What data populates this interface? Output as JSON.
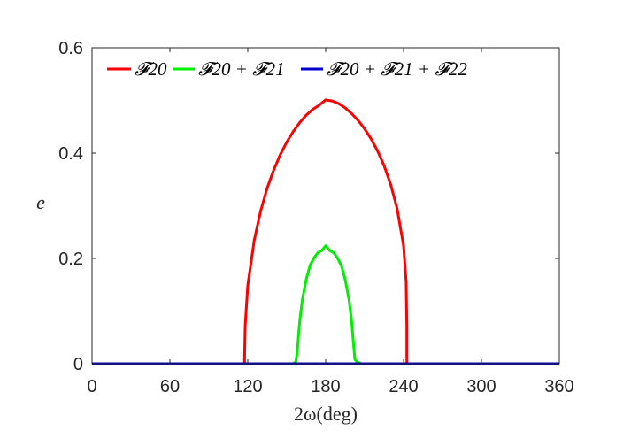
{
  "chart_data": {
    "type": "line",
    "xlabel": "2ω(deg)",
    "ylabel": "e",
    "xlim": [
      0,
      360
    ],
    "ylim": [
      0,
      0.6
    ],
    "xticks": [
      0,
      60,
      120,
      180,
      240,
      300,
      360
    ],
    "yticks": [
      0,
      0.2,
      0.4,
      0.6
    ],
    "ytick_labels": [
      "0",
      "0.2",
      "0.4",
      "0.6"
    ],
    "grid": false,
    "legend_position": "top",
    "series": [
      {
        "name": "𝓕20",
        "color": "#ff0000",
        "x": [
          0,
          117.5,
          117.5,
          118,
          120,
          125,
          130,
          135,
          140,
          145,
          150,
          155,
          160,
          165,
          170,
          175,
          180,
          185,
          190,
          195,
          200,
          205,
          210,
          215,
          220,
          225,
          230,
          235,
          240,
          242,
          242.5,
          242.5,
          360
        ],
        "y": [
          0,
          0,
          0.01,
          0.072,
          0.149,
          0.235,
          0.291,
          0.334,
          0.368,
          0.397,
          0.421,
          0.441,
          0.458,
          0.472,
          0.483,
          0.491,
          0.501,
          0.499,
          0.494,
          0.486,
          0.475,
          0.462,
          0.446,
          0.427,
          0.404,
          0.376,
          0.341,
          0.295,
          0.224,
          0.155,
          0.07,
          0,
          0
        ]
      },
      {
        "name": "𝓕20 + 𝓕21",
        "color": "#00ee00",
        "x": [
          0,
          155,
          157,
          158,
          160,
          162,
          165,
          168,
          171,
          174,
          177,
          180,
          183,
          186,
          189,
          192,
          195,
          198,
          200,
          201,
          202.5,
          204,
          207,
          360
        ],
        "y": [
          0,
          0,
          0.004,
          0.02,
          0.081,
          0.121,
          0.16,
          0.187,
          0.201,
          0.211,
          0.215,
          0.224,
          0.215,
          0.211,
          0.201,
          0.187,
          0.16,
          0.121,
          0.081,
          0.05,
          0.008,
          0.004,
          0,
          0
        ]
      },
      {
        "name": "𝓕20 + 𝓕21 + 𝓕22",
        "color": "#0000cc",
        "x": [
          0,
          360
        ],
        "y": [
          0,
          0
        ]
      }
    ]
  }
}
